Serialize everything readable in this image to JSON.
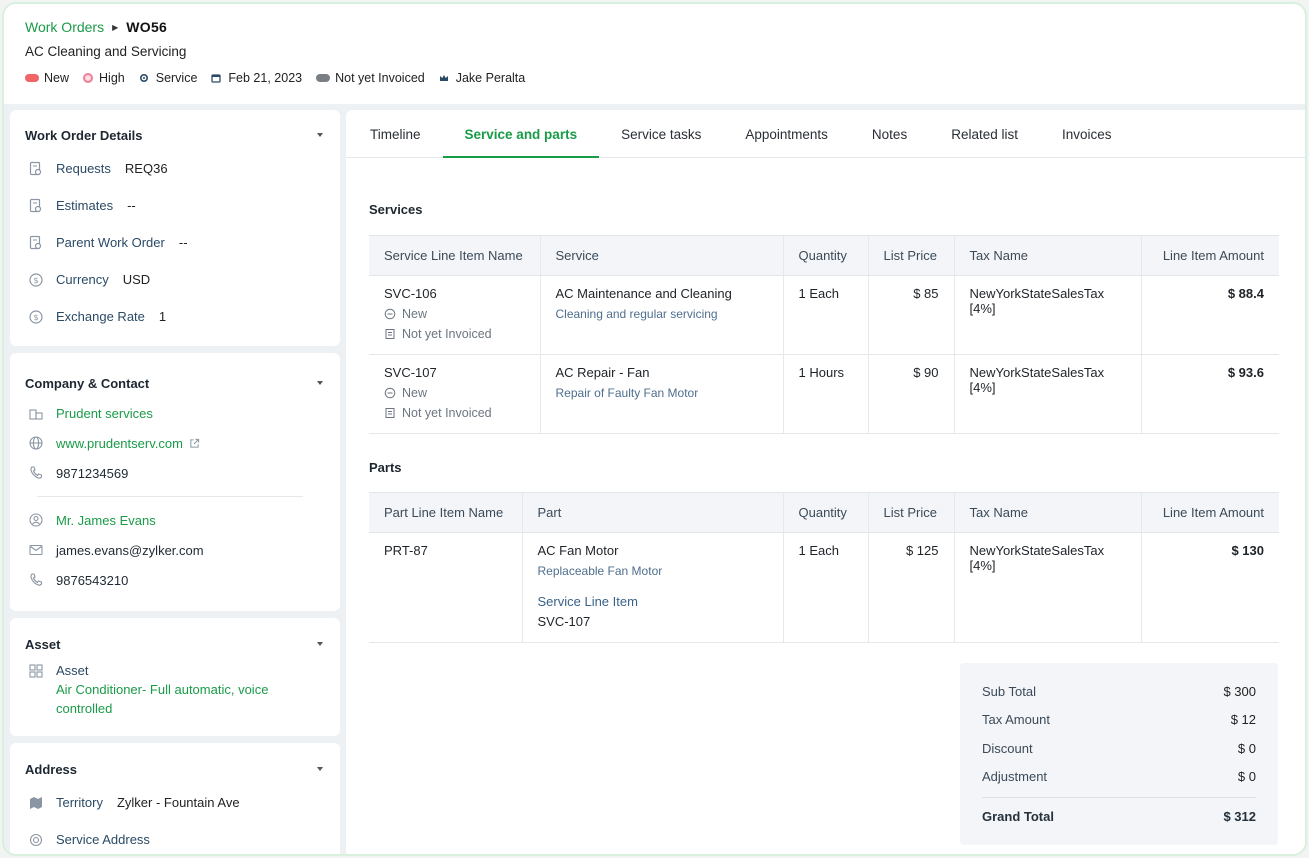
{
  "header": {
    "breadcrumb_link": "Work Orders",
    "work_order_id": "WO56",
    "subtitle": "AC Cleaning and Servicing",
    "meta": {
      "status": "New",
      "priority": "High",
      "type": "Service",
      "date": "Feb 21, 2023",
      "invoice_status": "Not yet Invoiced",
      "owner": "Jake Peralta"
    }
  },
  "sidebar": {
    "details": {
      "title": "Work Order Details",
      "requests_label": "Requests",
      "requests_value": "REQ36",
      "estimates_label": "Estimates",
      "estimates_value": "--",
      "parent_label": "Parent Work Order",
      "parent_value": "--",
      "currency_label": "Currency",
      "currency_value": "USD",
      "rate_label": "Exchange Rate",
      "rate_value": "1"
    },
    "company": {
      "title": "Company & Contact",
      "company_name": "Prudent services",
      "website": "www.prudentserv.com",
      "company_phone": "9871234569",
      "contact_name": "Mr. James Evans",
      "email": "james.evans@zylker.com",
      "contact_phone": "9876543210"
    },
    "asset": {
      "title": "Asset",
      "label": "Asset",
      "value": "Air Conditioner- Full automatic, voice controlled"
    },
    "address": {
      "title": "Address",
      "territory_label": "Territory",
      "territory_value": "Zylker - Fountain Ave",
      "service_address_label": "Service Address"
    }
  },
  "tabs": [
    "Timeline",
    "Service and parts",
    "Service tasks",
    "Appointments",
    "Notes",
    "Related list",
    "Invoices"
  ],
  "services": {
    "title": "Services",
    "columns": [
      "Service Line Item Name",
      "Service",
      "Quantity",
      "List Price",
      "Tax Name",
      "Line Item Amount"
    ],
    "rows": [
      {
        "id": "SVC-106",
        "status": "New",
        "invoice": "Not yet Invoiced",
        "service": "AC Maintenance and Cleaning",
        "desc": "Cleaning and regular servicing",
        "qty": "1 Each",
        "price": "$ 85",
        "tax": "NewYorkStateSalesTax",
        "tax_rate": "[4%]",
        "amount": "$ 88.4"
      },
      {
        "id": "SVC-107",
        "status": "New",
        "invoice": "Not yet Invoiced",
        "service": "AC Repair - Fan",
        "desc": "Repair of Faulty Fan Motor",
        "qty": "1 Hours",
        "price": "$ 90",
        "tax": "NewYorkStateSalesTax",
        "tax_rate": "[4%]",
        "amount": "$ 93.6"
      }
    ]
  },
  "parts": {
    "title": "Parts",
    "columns": [
      "Part Line Item Name",
      "Part",
      "Quantity",
      "List Price",
      "Tax Name",
      "Line Item Amount"
    ],
    "rows": [
      {
        "id": "PRT-87",
        "part": "AC Fan Motor",
        "desc": "Replaceable Fan Motor",
        "sli_label": "Service Line Item",
        "sli_value": "SVC-107",
        "qty": "1 Each",
        "price": "$ 125",
        "tax": "NewYorkStateSalesTax",
        "tax_rate": "[4%]",
        "amount": "$ 130"
      }
    ]
  },
  "totals": {
    "sub_total_label": "Sub Total",
    "sub_total": "$ 300",
    "tax_label": "Tax Amount",
    "tax": "$ 12",
    "discount_label": "Discount",
    "discount": "$ 0",
    "adjustment_label": "Adjustment",
    "adjustment": "$ 0",
    "grand_total_label": "Grand Total",
    "grand_total": "$ 312"
  },
  "colors": {
    "accent": "#1a9b48",
    "status_new": "#f06565",
    "priority_high": "#ee7f9a"
  }
}
